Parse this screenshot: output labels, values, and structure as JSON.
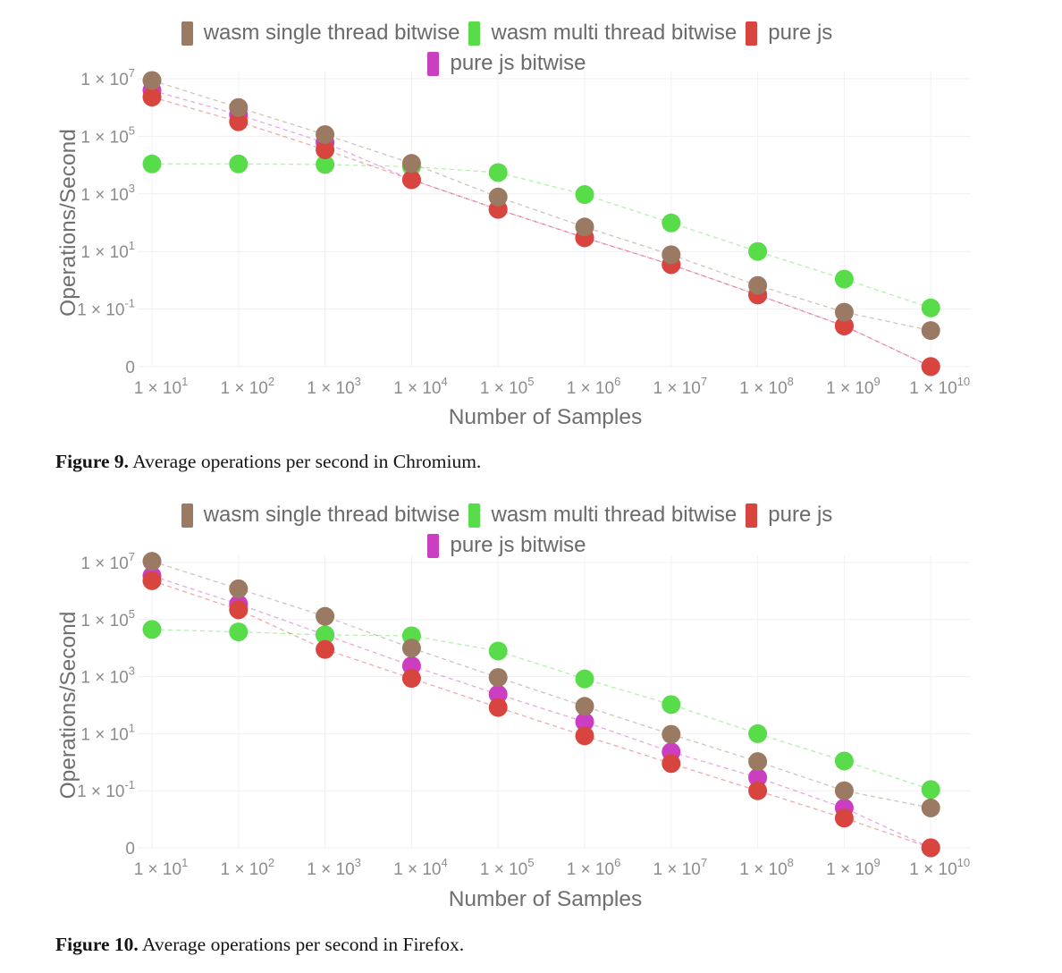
{
  "page": {
    "background": "#ffffff"
  },
  "figures": [
    {
      "caption_label": "Figure 9.",
      "caption_text": "Average operations per second in Chromium."
    },
    {
      "caption_label": "Figure 10.",
      "caption_text": "Average operations per second in Firefox."
    }
  ],
  "chart_data": [
    {
      "type": "scatter",
      "title": "Chromium",
      "xlabel": "Number of Samples",
      "ylabel": "Operations/Second",
      "x_scale": "log",
      "y_scale": "log",
      "grid": true,
      "legend_position": "top",
      "legend_rows": [
        [
          0,
          1,
          2
        ],
        [
          3
        ]
      ],
      "xlim": [
        10,
        10000000000
      ],
      "ylim": [
        0,
        10000000
      ],
      "x": [
        10,
        100,
        1000,
        10000,
        100000,
        1000000,
        10000000,
        100000000,
        1000000000,
        10000000000
      ],
      "x_ticks": [
        {
          "label": "1 × 10",
          "exp": "1"
        },
        {
          "label": "1 × 10",
          "exp": "2"
        },
        {
          "label": "1 × 10",
          "exp": "3"
        },
        {
          "label": "1 × 10",
          "exp": "4"
        },
        {
          "label": "1 × 10",
          "exp": "5"
        },
        {
          "label": "1 × 10",
          "exp": "6"
        },
        {
          "label": "1 × 10",
          "exp": "7"
        },
        {
          "label": "1 × 10",
          "exp": "8"
        },
        {
          "label": "1 × 10",
          "exp": "9"
        },
        {
          "label": "1 × 10",
          "exp": "10"
        }
      ],
      "y_ticks": [
        {
          "label": "1 × 10",
          "exp": "7"
        },
        {
          "label": "1 × 10",
          "exp": "5"
        },
        {
          "label": "1 × 10",
          "exp": "3"
        },
        {
          "label": "1 × 10",
          "exp": "1"
        },
        {
          "label": "1 × 10",
          "exp": "-1"
        },
        {
          "label": "0",
          "exp": null
        }
      ],
      "series": [
        {
          "name": "wasm single thread bitwise",
          "color": "#9b7a63",
          "values": [
            8700000,
            1000000,
            115000,
            11500,
            780,
            71,
            7.7,
            0.66,
            0.078,
            0.018
          ]
        },
        {
          "name": "wasm multi thread bitwise",
          "color": "#59dc4a",
          "values": [
            11000,
            11000,
            10500,
            8800,
            5500,
            950,
            98,
            10,
            1.1,
            0.11
          ]
        },
        {
          "name": "pure js",
          "color": "#d8453e",
          "values": [
            2300000,
            320000,
            34000,
            3100,
            290,
            30,
            3.5,
            0.31,
            0.026,
            0
          ]
        },
        {
          "name": "pure js bitwise",
          "color": "#cb3ec1",
          "values": [
            3900000,
            560000,
            60000,
            3100,
            290,
            30,
            3.5,
            0.31,
            0.026,
            0
          ]
        }
      ]
    },
    {
      "type": "scatter",
      "title": "Firefox",
      "xlabel": "Number of Samples",
      "ylabel": "Operations/Second",
      "x_scale": "log",
      "y_scale": "log",
      "grid": true,
      "legend_position": "top",
      "legend_rows": [
        [
          0,
          1,
          2
        ],
        [
          3
        ]
      ],
      "xlim": [
        10,
        10000000000
      ],
      "ylim": [
        0,
        10000000
      ],
      "x": [
        10,
        100,
        1000,
        10000,
        100000,
        1000000,
        10000000,
        100000000,
        1000000000,
        10000000000
      ],
      "x_ticks": [
        {
          "label": "1 × 10",
          "exp": "1"
        },
        {
          "label": "1 × 10",
          "exp": "2"
        },
        {
          "label": "1 × 10",
          "exp": "3"
        },
        {
          "label": "1 × 10",
          "exp": "4"
        },
        {
          "label": "1 × 10",
          "exp": "5"
        },
        {
          "label": "1 × 10",
          "exp": "6"
        },
        {
          "label": "1 × 10",
          "exp": "7"
        },
        {
          "label": "1 × 10",
          "exp": "8"
        },
        {
          "label": "1 × 10",
          "exp": "9"
        },
        {
          "label": "1 × 10",
          "exp": "10"
        }
      ],
      "y_ticks": [
        {
          "label": "1 × 10",
          "exp": "7"
        },
        {
          "label": "1 × 10",
          "exp": "5"
        },
        {
          "label": "1 × 10",
          "exp": "3"
        },
        {
          "label": "1 × 10",
          "exp": "1"
        },
        {
          "label": "1 × 10",
          "exp": "-1"
        },
        {
          "label": "0",
          "exp": null
        }
      ],
      "series": [
        {
          "name": "wasm single thread bitwise",
          "color": "#9b7a63",
          "values": [
            11000000,
            1200000,
            130000,
            10000,
            930,
            91,
            9.5,
            1.05,
            0.1,
            0.025
          ]
        },
        {
          "name": "wasm multi thread bitwise",
          "color": "#59dc4a",
          "values": [
            45000,
            37000,
            29000,
            27000,
            7900,
            830,
            105,
            10,
            1.1,
            0.11
          ]
        },
        {
          "name": "pure js",
          "color": "#d8453e",
          "values": [
            2300000,
            220000,
            9000,
            870,
            83,
            8.4,
            0.9,
            0.1,
            0.011,
            0
          ]
        },
        {
          "name": "pure js bitwise",
          "color": "#cb3ec1",
          "values": [
            3400000,
            350000,
            29000,
            2400,
            240,
            26,
            2.3,
            0.29,
            0.025,
            0
          ]
        }
      ]
    }
  ]
}
